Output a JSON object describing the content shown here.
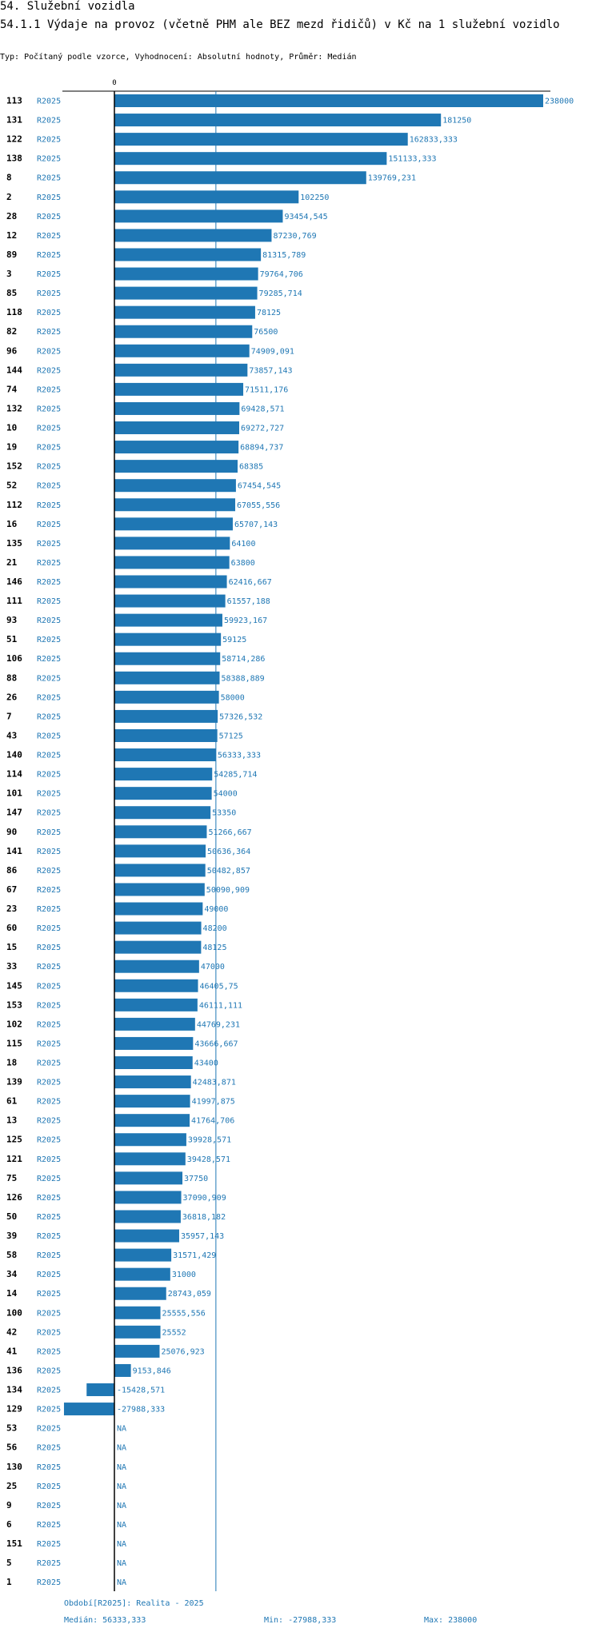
{
  "header": {
    "section": "54. Služební vozidla",
    "title": "54.1.1 Výdaje na provoz (včetně PHM ale BEZ mezd řidičů) v Kč na 1 služební vozidlo",
    "meta": "Typ: Počítaný podle vzorce, Vyhodnocení: Absolutní hodnoty, Průměr: Medián"
  },
  "colors": {
    "bar": "#1f77b4",
    "text_label": "#1f77b4",
    "axis": "#000000",
    "median_line": "#1f77b4"
  },
  "chart_data": {
    "type": "bar",
    "orientation": "horizontal",
    "axis_zero_label": "0",
    "series_label": "R2025",
    "xlim": [
      -27988.333,
      238000
    ],
    "median": 56333.333,
    "rows": [
      {
        "id": "113",
        "value": 238000,
        "label": "238000"
      },
      {
        "id": "131",
        "value": 181250,
        "label": "181250"
      },
      {
        "id": "122",
        "value": 162833.333,
        "label": "162833,333"
      },
      {
        "id": "138",
        "value": 151133.333,
        "label": "151133,333"
      },
      {
        "id": "8",
        "value": 139769.231,
        "label": "139769,231"
      },
      {
        "id": "2",
        "value": 102250,
        "label": "102250"
      },
      {
        "id": "28",
        "value": 93454.545,
        "label": "93454,545"
      },
      {
        "id": "12",
        "value": 87230.769,
        "label": "87230,769"
      },
      {
        "id": "89",
        "value": 81315.789,
        "label": "81315,789"
      },
      {
        "id": "3",
        "value": 79764.706,
        "label": "79764,706"
      },
      {
        "id": "85",
        "value": 79285.714,
        "label": "79285,714"
      },
      {
        "id": "118",
        "value": 78125,
        "label": "78125"
      },
      {
        "id": "82",
        "value": 76500,
        "label": "76500"
      },
      {
        "id": "96",
        "value": 74909.091,
        "label": "74909,091"
      },
      {
        "id": "144",
        "value": 73857.143,
        "label": "73857,143"
      },
      {
        "id": "74",
        "value": 71511.176,
        "label": "71511,176"
      },
      {
        "id": "132",
        "value": 69428.571,
        "label": "69428,571"
      },
      {
        "id": "10",
        "value": 69272.727,
        "label": "69272,727"
      },
      {
        "id": "19",
        "value": 68894.737,
        "label": "68894,737"
      },
      {
        "id": "152",
        "value": 68385,
        "label": "68385"
      },
      {
        "id": "52",
        "value": 67454.545,
        "label": "67454,545"
      },
      {
        "id": "112",
        "value": 67055.556,
        "label": "67055,556"
      },
      {
        "id": "16",
        "value": 65707.143,
        "label": "65707,143"
      },
      {
        "id": "135",
        "value": 64100,
        "label": "64100"
      },
      {
        "id": "21",
        "value": 63800,
        "label": "63800"
      },
      {
        "id": "146",
        "value": 62416.667,
        "label": "62416,667"
      },
      {
        "id": "111",
        "value": 61557.188,
        "label": "61557,188"
      },
      {
        "id": "93",
        "value": 59923.167,
        "label": "59923,167"
      },
      {
        "id": "51",
        "value": 59125,
        "label": "59125"
      },
      {
        "id": "106",
        "value": 58714.286,
        "label": "58714,286"
      },
      {
        "id": "88",
        "value": 58388.889,
        "label": "58388,889"
      },
      {
        "id": "26",
        "value": 58000,
        "label": "58000"
      },
      {
        "id": "7",
        "value": 57326.532,
        "label": "57326,532"
      },
      {
        "id": "43",
        "value": 57125,
        "label": "57125"
      },
      {
        "id": "140",
        "value": 56333.333,
        "label": "56333,333"
      },
      {
        "id": "114",
        "value": 54285.714,
        "label": "54285,714"
      },
      {
        "id": "101",
        "value": 54000,
        "label": "54000"
      },
      {
        "id": "147",
        "value": 53350,
        "label": "53350"
      },
      {
        "id": "90",
        "value": 51266.667,
        "label": "51266,667"
      },
      {
        "id": "141",
        "value": 50636.364,
        "label": "50636,364"
      },
      {
        "id": "86",
        "value": 50482.857,
        "label": "50482,857"
      },
      {
        "id": "67",
        "value": 50090.909,
        "label": "50090,909"
      },
      {
        "id": "23",
        "value": 49000,
        "label": "49000"
      },
      {
        "id": "60",
        "value": 48200,
        "label": "48200"
      },
      {
        "id": "15",
        "value": 48125,
        "label": "48125"
      },
      {
        "id": "33",
        "value": 47000,
        "label": "47000"
      },
      {
        "id": "145",
        "value": 46405.75,
        "label": "46405,75"
      },
      {
        "id": "153",
        "value": 46111.111,
        "label": "46111,111"
      },
      {
        "id": "102",
        "value": 44769.231,
        "label": "44769,231"
      },
      {
        "id": "115",
        "value": 43666.667,
        "label": "43666,667"
      },
      {
        "id": "18",
        "value": 43400,
        "label": "43400"
      },
      {
        "id": "139",
        "value": 42483.871,
        "label": "42483,871"
      },
      {
        "id": "61",
        "value": 41997.875,
        "label": "41997,875"
      },
      {
        "id": "13",
        "value": 41764.706,
        "label": "41764,706"
      },
      {
        "id": "125",
        "value": 39928.571,
        "label": "39928,571"
      },
      {
        "id": "121",
        "value": 39428.571,
        "label": "39428,571"
      },
      {
        "id": "75",
        "value": 37750,
        "label": "37750"
      },
      {
        "id": "126",
        "value": 37090.909,
        "label": "37090,909"
      },
      {
        "id": "50",
        "value": 36818.182,
        "label": "36818,182"
      },
      {
        "id": "39",
        "value": 35957.143,
        "label": "35957,143"
      },
      {
        "id": "58",
        "value": 31571.429,
        "label": "31571,429"
      },
      {
        "id": "34",
        "value": 31000,
        "label": "31000"
      },
      {
        "id": "14",
        "value": 28743.059,
        "label": "28743,059"
      },
      {
        "id": "100",
        "value": 25555.556,
        "label": "25555,556"
      },
      {
        "id": "42",
        "value": 25552,
        "label": "25552"
      },
      {
        "id": "41",
        "value": 25076.923,
        "label": "25076,923"
      },
      {
        "id": "136",
        "value": 9153.846,
        "label": "9153,846"
      },
      {
        "id": "134",
        "value": -15428.571,
        "label": "-15428,571"
      },
      {
        "id": "129",
        "value": -27988.333,
        "label": "-27988,333"
      },
      {
        "id": "53",
        "value": null,
        "label": "NA"
      },
      {
        "id": "56",
        "value": null,
        "label": "NA"
      },
      {
        "id": "130",
        "value": null,
        "label": "NA"
      },
      {
        "id": "25",
        "value": null,
        "label": "NA"
      },
      {
        "id": "9",
        "value": null,
        "label": "NA"
      },
      {
        "id": "6",
        "value": null,
        "label": "NA"
      },
      {
        "id": "151",
        "value": null,
        "label": "NA"
      },
      {
        "id": "5",
        "value": null,
        "label": "NA"
      },
      {
        "id": "1",
        "value": null,
        "label": "NA"
      }
    ]
  },
  "footer": {
    "period": "Období[R2025]: Realita - 2025",
    "median": "Medián: 56333,333",
    "min": "Min: -27988,333",
    "max": "Max: 238000"
  }
}
